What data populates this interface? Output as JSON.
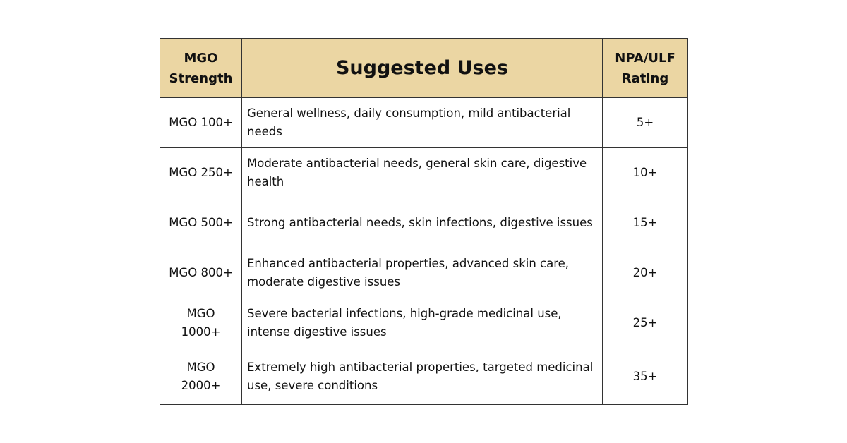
{
  "table": {
    "header": [
      "MGO Strength",
      "Suggested Uses",
      "NPA/ULF Rating"
    ],
    "rows": [
      [
        "MGO 100+",
        "General wellness, daily consumption, mild antibacterial needs",
        "5+"
      ],
      [
        "MGO 250+",
        "Moderate antibacterial needs, general skin care, digestive health",
        "10+"
      ],
      [
        "MGO 500+",
        "Strong antibacterial needs, skin infections, digestive issues",
        "15+"
      ],
      [
        "MGO 800+",
        "Enhanced antibacterial properties, advanced skin care, moderate digestive issues",
        "20+"
      ],
      [
        "MGO 1000+",
        "Severe bacterial infections, high-grade medicinal use, intense digestive issues",
        "25+"
      ],
      [
        "MGO 2000+",
        "Extremely high antibacterial properties, targeted medicinal use, severe conditions",
        "35+"
      ]
    ]
  }
}
